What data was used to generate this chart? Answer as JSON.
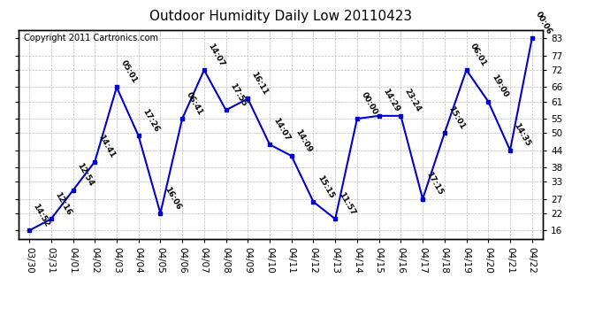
{
  "title": "Outdoor Humidity Daily Low 20110423",
  "copyright": "Copyright 2011 Cartronics.com",
  "x_labels": [
    "03/30",
    "03/31",
    "04/01",
    "04/02",
    "04/03",
    "04/04",
    "04/05",
    "04/06",
    "04/07",
    "04/08",
    "04/09",
    "04/10",
    "04/11",
    "04/12",
    "04/13",
    "04/14",
    "04/15",
    "04/16",
    "04/17",
    "04/18",
    "04/19",
    "04/20",
    "04/21",
    "04/22"
  ],
  "y_values": [
    16,
    20,
    30,
    40,
    66,
    49,
    22,
    55,
    72,
    58,
    62,
    46,
    42,
    26,
    20,
    55,
    56,
    56,
    27,
    50,
    72,
    61,
    44,
    83
  ],
  "point_labels": [
    "14:52",
    "12:16",
    "12:54",
    "14:41",
    "05:01",
    "17:26",
    "16:06",
    "06:41",
    "14:07",
    "17:55",
    "16:11",
    "14:07",
    "14:09",
    "15:15",
    "11:57",
    "00:00",
    "14:29",
    "23:24",
    "17:15",
    "15:01",
    "06:01",
    "19:00",
    "14:35",
    "00:06"
  ],
  "y_ticks": [
    16,
    22,
    27,
    33,
    38,
    44,
    50,
    55,
    61,
    66,
    72,
    77,
    83
  ],
  "ylim": [
    13,
    86
  ],
  "line_color": "#0000cc",
  "marker_color": "#0000cc",
  "bg_color": "#ffffff",
  "grid_color": "#bbbbbb",
  "title_fontsize": 11,
  "annotation_fontsize": 6.5,
  "tick_fontsize": 7.5,
  "copyright_fontsize": 7
}
